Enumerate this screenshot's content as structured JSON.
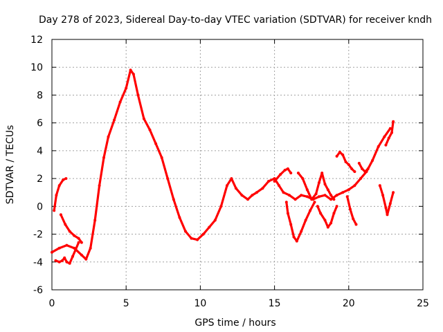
{
  "chart_data": {
    "type": "scatter",
    "title": "Day 278 of 2023, Sidereal Day-to-day VTEC variation (SDTVAR) for receiver kndh",
    "xlabel": "GPS time / hours",
    "ylabel": "SDTVAR / TECUs",
    "xlim": [
      0,
      25
    ],
    "ylim": [
      -6,
      12
    ],
    "xticks": [
      0,
      5,
      10,
      15,
      20,
      25
    ],
    "yticks": [
      -6,
      -4,
      -2,
      0,
      2,
      4,
      6,
      8,
      10,
      12
    ],
    "grid": true,
    "marker_color": "#ff0000",
    "series": [
      {
        "name": "main",
        "points": [
          [
            0.0,
            -3.3
          ],
          [
            0.5,
            -3.0
          ],
          [
            1.0,
            -2.8
          ],
          [
            1.5,
            -3.0
          ],
          [
            2.0,
            -3.5
          ],
          [
            2.3,
            -3.8
          ],
          [
            2.6,
            -3.0
          ],
          [
            2.9,
            -1.0
          ],
          [
            3.2,
            1.5
          ],
          [
            3.5,
            3.5
          ],
          [
            3.8,
            5.0
          ],
          [
            4.2,
            6.2
          ],
          [
            4.6,
            7.5
          ],
          [
            5.0,
            8.5
          ],
          [
            5.3,
            9.8
          ],
          [
            5.5,
            9.5
          ],
          [
            5.8,
            8.0
          ],
          [
            6.2,
            6.3
          ],
          [
            6.6,
            5.5
          ],
          [
            7.0,
            4.5
          ],
          [
            7.4,
            3.5
          ],
          [
            7.8,
            2.0
          ],
          [
            8.2,
            0.5
          ],
          [
            8.6,
            -0.8
          ],
          [
            9.0,
            -1.8
          ],
          [
            9.4,
            -2.3
          ],
          [
            9.8,
            -2.4
          ],
          [
            10.2,
            -2.0
          ],
          [
            10.6,
            -1.5
          ],
          [
            11.0,
            -1.0
          ],
          [
            11.4,
            0.0
          ],
          [
            11.8,
            1.5
          ],
          [
            12.1,
            2.0
          ],
          [
            12.4,
            1.3
          ],
          [
            12.8,
            0.8
          ],
          [
            13.2,
            0.5
          ],
          [
            13.5,
            0.8
          ],
          [
            13.8,
            1.0
          ],
          [
            14.2,
            1.3
          ],
          [
            14.6,
            1.8
          ],
          [
            15.0,
            2.0
          ],
          [
            15.3,
            1.5
          ],
          [
            15.6,
            1.0
          ],
          [
            16.0,
            0.8
          ],
          [
            16.4,
            0.5
          ],
          [
            16.8,
            0.8
          ],
          [
            17.2,
            0.7
          ],
          [
            17.6,
            0.5
          ],
          [
            18.0,
            0.7
          ],
          [
            18.4,
            0.8
          ],
          [
            18.8,
            0.5
          ],
          [
            19.2,
            0.8
          ],
          [
            19.6,
            1.0
          ],
          [
            20.0,
            1.2
          ],
          [
            20.4,
            1.5
          ],
          [
            20.8,
            2.0
          ],
          [
            21.2,
            2.5
          ],
          [
            21.6,
            3.3
          ],
          [
            22.0,
            4.3
          ],
          [
            22.4,
            5.0
          ],
          [
            22.8,
            5.6
          ]
        ]
      },
      {
        "name": "seg-a",
        "points": [
          [
            0.15,
            -0.3
          ],
          [
            0.3,
            0.8
          ],
          [
            0.5,
            1.5
          ],
          [
            0.75,
            1.9
          ],
          [
            0.95,
            2.0
          ]
        ]
      },
      {
        "name": "seg-b",
        "points": [
          [
            0.25,
            -3.9
          ],
          [
            0.5,
            -4.0
          ],
          [
            0.7,
            -3.9
          ],
          [
            0.85,
            -3.7
          ],
          [
            1.0,
            -4.0
          ],
          [
            1.2,
            -4.1
          ],
          [
            1.4,
            -3.6
          ],
          [
            1.6,
            -3.1
          ],
          [
            1.8,
            -2.6
          ]
        ]
      },
      {
        "name": "seg-c",
        "points": [
          [
            0.6,
            -0.6
          ],
          [
            0.9,
            -1.3
          ],
          [
            1.2,
            -1.8
          ],
          [
            1.5,
            -2.1
          ],
          [
            1.8,
            -2.3
          ],
          [
            2.0,
            -2.6
          ]
        ]
      },
      {
        "name": "seg-d",
        "points": [
          [
            15.0,
            1.8
          ],
          [
            15.4,
            2.3
          ],
          [
            15.7,
            2.6
          ],
          [
            15.9,
            2.7
          ],
          [
            16.1,
            2.4
          ]
        ]
      },
      {
        "name": "seg-e",
        "points": [
          [
            15.8,
            0.3
          ],
          [
            15.9,
            -0.5
          ],
          [
            16.1,
            -1.3
          ],
          [
            16.3,
            -2.2
          ],
          [
            16.5,
            -2.5
          ],
          [
            16.8,
            -1.8
          ],
          [
            17.1,
            -1.0
          ],
          [
            17.4,
            -0.3
          ],
          [
            17.7,
            0.3
          ]
        ]
      },
      {
        "name": "seg-f",
        "points": [
          [
            16.6,
            2.4
          ],
          [
            16.9,
            2.0
          ],
          [
            17.2,
            1.2
          ],
          [
            17.5,
            0.5
          ],
          [
            17.8,
            0.9
          ],
          [
            18.0,
            1.7
          ],
          [
            18.2,
            2.4
          ],
          [
            18.4,
            1.6
          ],
          [
            18.6,
            1.2
          ],
          [
            18.8,
            0.8
          ],
          [
            19.0,
            0.5
          ]
        ]
      },
      {
        "name": "seg-g",
        "points": [
          [
            17.9,
            0.0
          ],
          [
            18.1,
            -0.5
          ],
          [
            18.4,
            -1.0
          ],
          [
            18.6,
            -1.5
          ],
          [
            18.8,
            -1.2
          ],
          [
            19.0,
            -0.5
          ],
          [
            19.2,
            0.0
          ]
        ]
      },
      {
        "name": "seg-h",
        "points": [
          [
            19.2,
            3.6
          ],
          [
            19.4,
            3.9
          ],
          [
            19.6,
            3.7
          ],
          [
            19.8,
            3.2
          ],
          [
            20.0,
            3.0
          ],
          [
            20.2,
            2.7
          ],
          [
            20.4,
            2.5
          ]
        ]
      },
      {
        "name": "seg-i",
        "points": [
          [
            19.9,
            0.7
          ],
          [
            20.1,
            -0.2
          ],
          [
            20.3,
            -0.9
          ],
          [
            20.5,
            -1.3
          ]
        ]
      },
      {
        "name": "seg-j",
        "points": [
          [
            20.7,
            3.1
          ],
          [
            20.9,
            2.7
          ],
          [
            21.1,
            2.5
          ],
          [
            21.3,
            2.7
          ]
        ]
      },
      {
        "name": "seg-k",
        "points": [
          [
            22.1,
            1.5
          ],
          [
            22.3,
            0.8
          ],
          [
            22.5,
            -0.1
          ],
          [
            22.6,
            -0.6
          ],
          [
            22.8,
            0.2
          ],
          [
            23.0,
            1.0
          ]
        ]
      },
      {
        "name": "seg-l",
        "points": [
          [
            22.5,
            4.4
          ],
          [
            22.7,
            4.9
          ],
          [
            22.9,
            5.3
          ],
          [
            23.0,
            6.1
          ]
        ]
      }
    ]
  }
}
